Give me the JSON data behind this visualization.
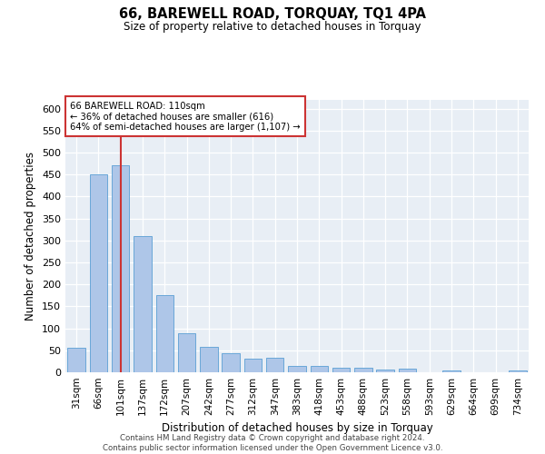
{
  "title": "66, BAREWELL ROAD, TORQUAY, TQ1 4PA",
  "subtitle": "Size of property relative to detached houses in Torquay",
  "xlabel": "Distribution of detached houses by size in Torquay",
  "ylabel": "Number of detached properties",
  "categories": [
    "31sqm",
    "66sqm",
    "101sqm",
    "137sqm",
    "172sqm",
    "207sqm",
    "242sqm",
    "277sqm",
    "312sqm",
    "347sqm",
    "383sqm",
    "418sqm",
    "453sqm",
    "488sqm",
    "523sqm",
    "558sqm",
    "593sqm",
    "629sqm",
    "664sqm",
    "699sqm",
    "734sqm"
  ],
  "values": [
    55,
    450,
    472,
    310,
    176,
    88,
    58,
    43,
    30,
    33,
    15,
    15,
    10,
    10,
    7,
    8,
    0,
    5,
    0,
    0,
    5
  ],
  "bar_color": "#aec6e8",
  "bar_edge_color": "#5a9fd4",
  "highlight_bar_index": 2,
  "highlight_color": "#cc3333",
  "annotation_line1": "66 BAREWELL ROAD: 110sqm",
  "annotation_line2": "← 36% of detached houses are smaller (616)",
  "annotation_line3": "64% of semi-detached houses are larger (1,107) →",
  "annotation_box_color": "#cc3333",
  "ylim": [
    0,
    620
  ],
  "yticks": [
    0,
    50,
    100,
    150,
    200,
    250,
    300,
    350,
    400,
    450,
    500,
    550,
    600
  ],
  "background_color": "#e8eef5",
  "grid_color": "#c8d4e0",
  "footer_line1": "Contains HM Land Registry data © Crown copyright and database right 2024.",
  "footer_line2": "Contains public sector information licensed under the Open Government Licence v3.0."
}
